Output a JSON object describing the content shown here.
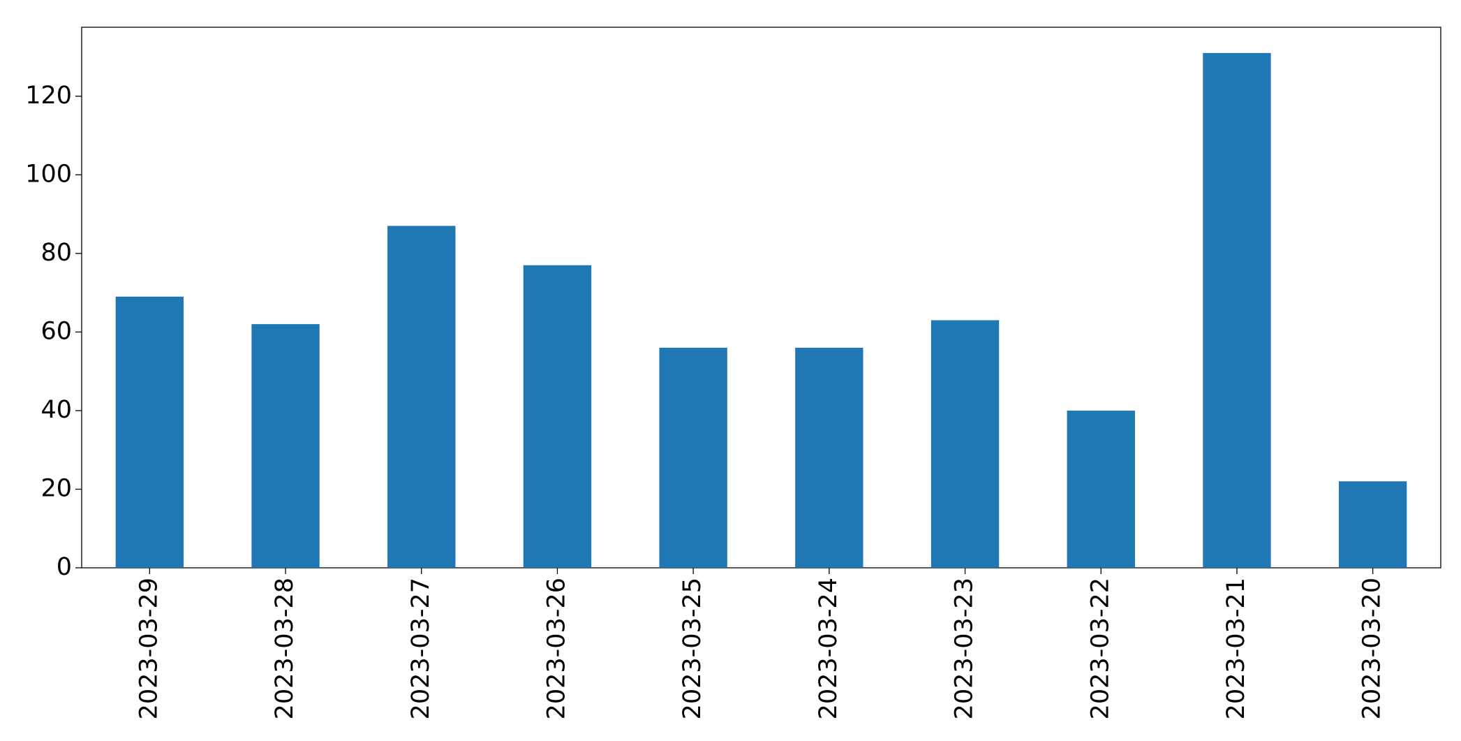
{
  "chart_data": {
    "type": "bar",
    "categories": [
      "2023-03-29",
      "2023-03-28",
      "2023-03-27",
      "2023-03-26",
      "2023-03-25",
      "2023-03-24",
      "2023-03-23",
      "2023-03-22",
      "2023-03-21",
      "2023-03-20"
    ],
    "values": [
      69,
      62,
      87,
      77,
      56,
      56,
      63,
      40,
      131,
      22
    ],
    "color": "#1f77b4",
    "ylim": [
      0,
      137.55
    ],
    "yticks": [
      0,
      20,
      40,
      60,
      80,
      100,
      120
    ],
    "grid": false
  }
}
